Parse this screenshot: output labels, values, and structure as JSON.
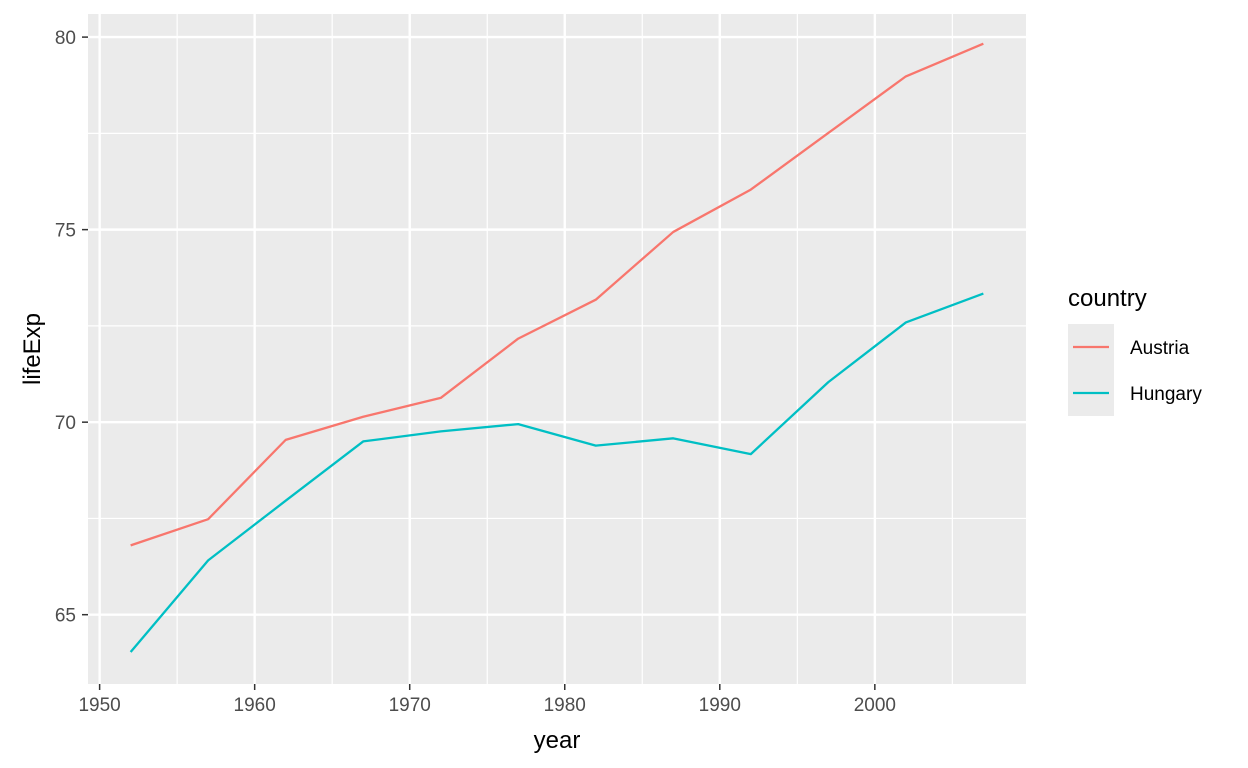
{
  "chart_data": {
    "type": "line",
    "title": "",
    "xlabel": "year",
    "ylabel": "lifeExp",
    "xlim": [
      1949.25,
      2009.75
    ],
    "ylim": [
      63.2,
      80.6
    ],
    "x_ticks": [
      1950,
      1960,
      1970,
      1980,
      1990,
      2000
    ],
    "y_ticks": [
      65,
      70,
      75,
      80
    ],
    "grid": true,
    "legend": {
      "title": "country",
      "position": "right"
    },
    "x": [
      1952,
      1957,
      1962,
      1967,
      1972,
      1977,
      1982,
      1987,
      1992,
      1997,
      2002,
      2007
    ],
    "series": [
      {
        "name": "Austria",
        "color": "#F8766D",
        "values": [
          66.8,
          67.48,
          69.54,
          70.14,
          70.63,
          72.17,
          73.18,
          74.94,
          76.04,
          77.51,
          78.98,
          79.83
        ]
      },
      {
        "name": "Hungary",
        "color": "#00BFC4",
        "values": [
          64.03,
          66.41,
          67.96,
          69.5,
          69.76,
          69.95,
          69.39,
          69.58,
          69.17,
          71.04,
          72.59,
          73.34
        ]
      }
    ],
    "colors": {
      "panel_background": "#EBEBEB",
      "grid_major": "#FFFFFF",
      "axis_text": "#4D4D4D"
    }
  }
}
